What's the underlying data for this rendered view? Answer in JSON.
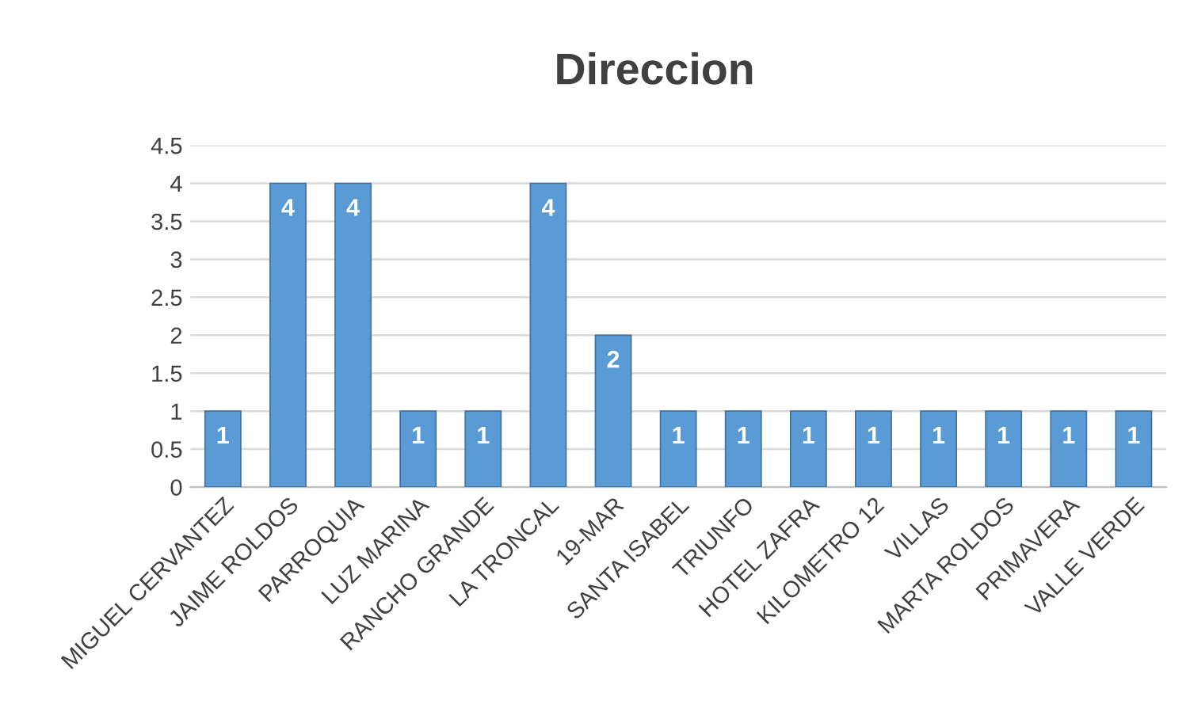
{
  "chart_data": {
    "type": "bar",
    "title": "Direccion",
    "categories": [
      "MIGUEL CERVANTEZ",
      "JAIME ROLDOS",
      "PARROQUIA",
      "LUZ MARINA",
      "RANCHO GRANDE",
      "LA TRONCAL",
      "19-MAR",
      "SANTA ISABEL",
      "TRIUNFO",
      "HOTEL ZAFRA",
      "KILOMETRO 12",
      "VILLAS",
      "MARTA ROLDOS",
      "PRIMAVERA",
      "VALLE VERDE"
    ],
    "values": [
      1,
      4,
      4,
      1,
      1,
      4,
      2,
      1,
      1,
      1,
      1,
      1,
      1,
      1,
      1
    ],
    "color": "#5b9bd5",
    "ylim": [
      0,
      4.5
    ],
    "yticks": [
      0,
      0.5,
      1,
      1.5,
      2,
      2.5,
      3,
      3.5,
      4,
      4.5
    ],
    "grid": "y",
    "data_labels": true
  }
}
